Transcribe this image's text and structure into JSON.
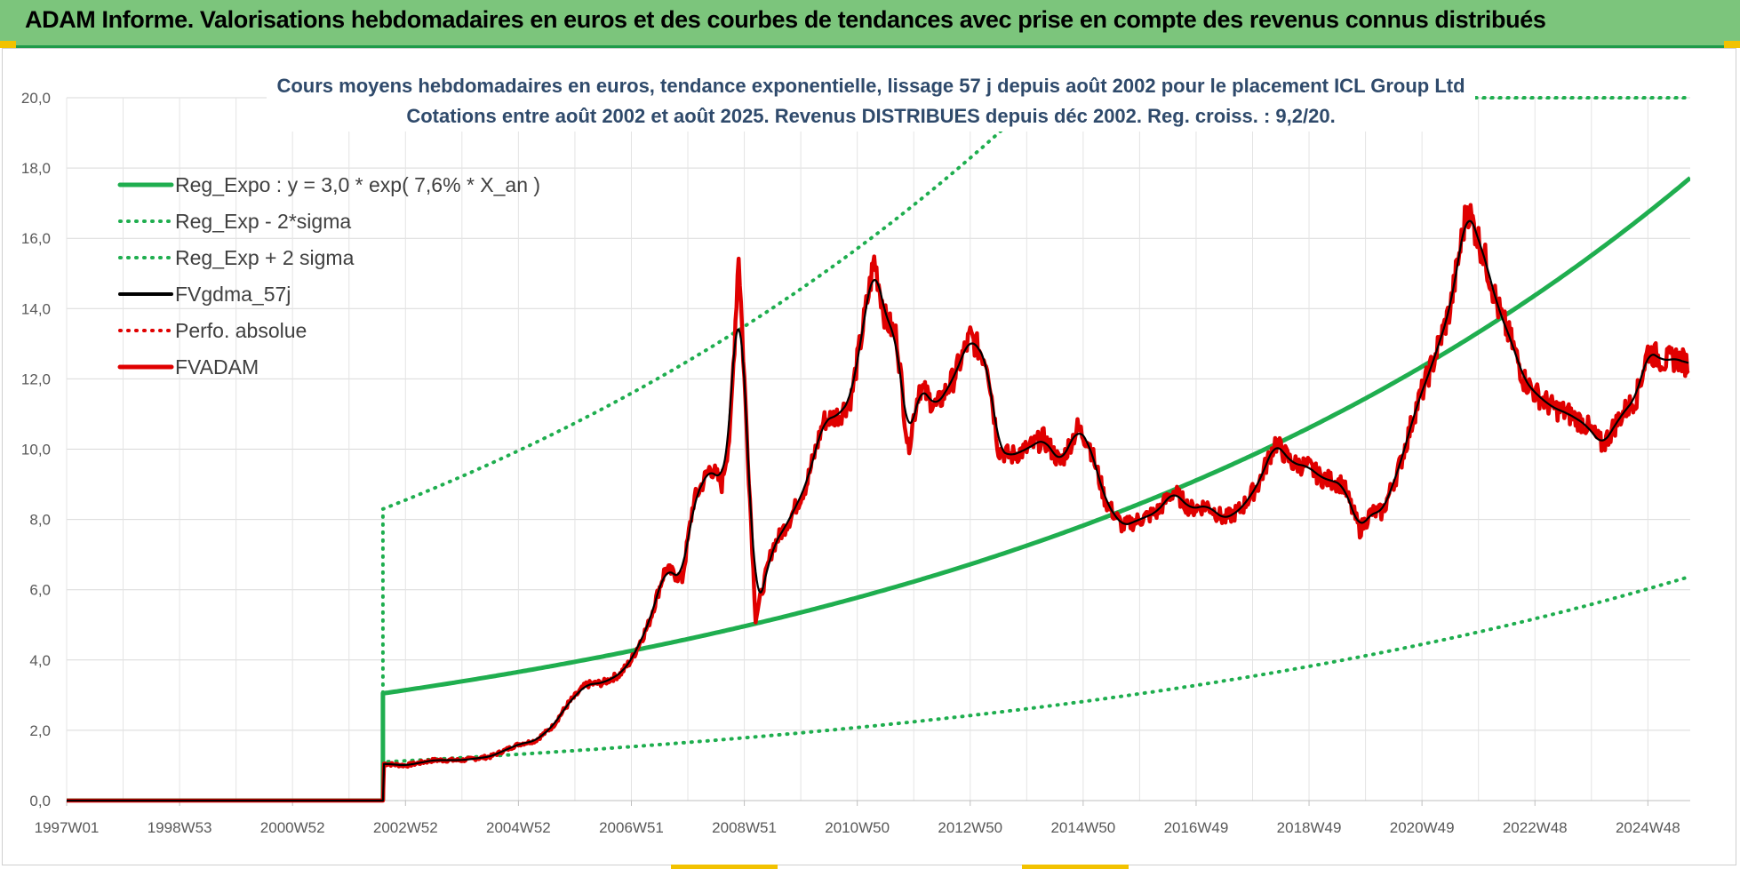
{
  "banner": {
    "title": "ADAM Informe. Valorisations hebdomadaires en euros et des courbes de tendances avec prise en compte des revenus connus distribués",
    "background": "#7cc57c",
    "border_color": "#1f9a4a",
    "accent": "#f2c200"
  },
  "chart_data": {
    "type": "line",
    "title": "Cours moyens hebdomadaires en euros, tendance exponentielle, lissage 57 j depuis août 2002 pour le placement ICL Group Ltd",
    "subtitle": "Cotations entre août 2002 et août 2025. Revenus DISTRIBUES depuis déc 2002. Reg. croiss. : 9,2/20.",
    "xlabel": "",
    "ylabel": "",
    "x_range": [
      1997.0,
      2025.75
    ],
    "ylim": [
      0,
      20
    ],
    "y_ticks": [
      "0,0",
      "2,0",
      "4,0",
      "6,0",
      "8,0",
      "10,0",
      "12,0",
      "14,0",
      "16,0",
      "18,0",
      "20,0"
    ],
    "x_ticks": [
      {
        "label": "1997W01",
        "x": 1997.0
      },
      {
        "label": "1998W53",
        "x": 1999.0
      },
      {
        "label": "2000W52",
        "x": 2001.0
      },
      {
        "label": "2002W52",
        "x": 2003.0
      },
      {
        "label": "2004W52",
        "x": 2005.0
      },
      {
        "label": "2006W51",
        "x": 2007.0
      },
      {
        "label": "2008W51",
        "x": 2009.0
      },
      {
        "label": "2010W50",
        "x": 2011.0
      },
      {
        "label": "2012W50",
        "x": 2013.0
      },
      {
        "label": "2014W50",
        "x": 2015.0
      },
      {
        "label": "2016W49",
        "x": 2017.0
      },
      {
        "label": "2018W49",
        "x": 2019.0
      },
      {
        "label": "2020W49",
        "x": 2021.0
      },
      {
        "label": "2022W48",
        "x": 2023.0
      },
      {
        "label": "2024W48",
        "x": 2025.0
      }
    ],
    "grid": true,
    "legend_position": "top-left",
    "trend": {
      "start": 2002.6,
      "start_value": 3.05,
      "growth": 0.076,
      "minus_factor": 0.36,
      "plus_factor": 2.72
    },
    "series": [
      {
        "name": "Reg_Expo : y = 3,0 * exp( 7,6% *  X_an )",
        "color": "#1fae4f",
        "style": "solid"
      },
      {
        "name": "Reg_Exp - 2*sigma",
        "color": "#1fae4f",
        "style": "dotted"
      },
      {
        "name": "Reg_Exp + 2 sigma",
        "color": "#1fae4f",
        "style": "dotted"
      },
      {
        "name": "FVgdma_57j",
        "color": "#000000",
        "style": "solid"
      },
      {
        "name": "Perfo. absolue",
        "color": "#e00000",
        "style": "dotted"
      },
      {
        "name": "FVADAM",
        "color": "#e00000",
        "style": "solid",
        "x": [
          1997.0,
          2002.6,
          2002.62,
          2003.0,
          2003.5,
          2004.0,
          2004.5,
          2005.0,
          2005.3,
          2005.6,
          2005.9,
          2006.2,
          2006.5,
          2006.8,
          2007.0,
          2007.3,
          2007.6,
          2007.9,
          2008.1,
          2008.4,
          2008.6,
          2008.75,
          2008.9,
          2009.0,
          2009.2,
          2009.5,
          2009.8,
          2010.1,
          2010.4,
          2010.7,
          2010.9,
          2011.0,
          2011.3,
          2011.5,
          2011.7,
          2011.9,
          2012.1,
          2012.4,
          2012.7,
          2013.0,
          2013.3,
          2013.5,
          2013.7,
          2014.0,
          2014.3,
          2014.6,
          2014.9,
          2015.1,
          2015.4,
          2015.7,
          2016.0,
          2016.3,
          2016.6,
          2016.9,
          2017.2,
          2017.5,
          2017.8,
          2018.1,
          2018.4,
          2018.7,
          2019.0,
          2019.2,
          2019.6,
          2019.9,
          2020.1,
          2020.3,
          2020.6,
          2020.9,
          2021.2,
          2021.5,
          2021.8,
          2022.1,
          2022.35,
          2022.6,
          2022.8,
          2023.0,
          2023.3,
          2023.6,
          2023.9,
          2024.2,
          2024.5,
          2024.8,
          2025.0,
          2025.3,
          2025.5,
          2025.72
        ],
        "values": [
          0.0,
          0.0,
          1.05,
          1.0,
          1.15,
          1.15,
          1.25,
          1.6,
          1.7,
          2.1,
          2.8,
          3.3,
          3.35,
          3.6,
          4.0,
          5.0,
          6.6,
          6.3,
          8.5,
          9.5,
          9.0,
          10.5,
          15.6,
          12.0,
          5.2,
          7.2,
          8.0,
          9.0,
          10.8,
          11.0,
          11.5,
          12.5,
          15.4,
          13.7,
          13.2,
          10.0,
          11.8,
          11.2,
          12.0,
          13.2,
          12.5,
          10.0,
          9.8,
          10.0,
          10.3,
          9.6,
          10.6,
          10.2,
          8.5,
          7.8,
          8.0,
          8.2,
          8.8,
          8.3,
          8.4,
          8.0,
          8.3,
          9.0,
          10.2,
          9.6,
          9.5,
          9.2,
          9.0,
          7.7,
          8.2,
          8.2,
          9.5,
          11.2,
          12.5,
          14.0,
          16.9,
          15.5,
          14.0,
          13.0,
          12.0,
          11.6,
          11.2,
          11.0,
          10.7,
          10.1,
          10.9,
          11.5,
          12.8,
          12.5,
          12.6,
          12.4
        ]
      }
    ]
  }
}
